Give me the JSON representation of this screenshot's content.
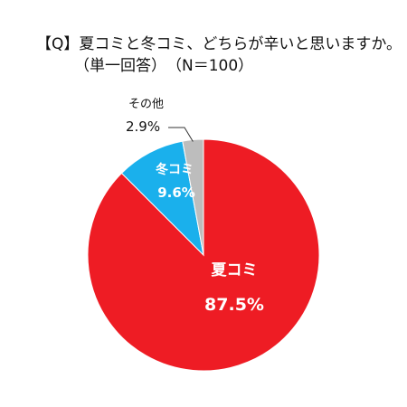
{
  "title": {
    "line1": "【Q】夏コミと冬コミ、どちらが辛いと思いますか。",
    "line2": "（単一回答）　（N＝100）"
  },
  "chart_data": {
    "type": "pie",
    "start_angle_deg": 0,
    "direction": "clockwise",
    "slices": [
      {
        "name": "夏コミ",
        "value": 87.5,
        "label": "87.5%",
        "color": "#ee1c24"
      },
      {
        "name": "冬コミ",
        "value": 9.6,
        "label": "9.6%",
        "color": "#1ab0ec"
      },
      {
        "name": "その他",
        "value": 2.9,
        "label": "2.9%",
        "color": "#bdbdbd"
      }
    ],
    "colors": {
      "border": "#ffffff"
    }
  }
}
